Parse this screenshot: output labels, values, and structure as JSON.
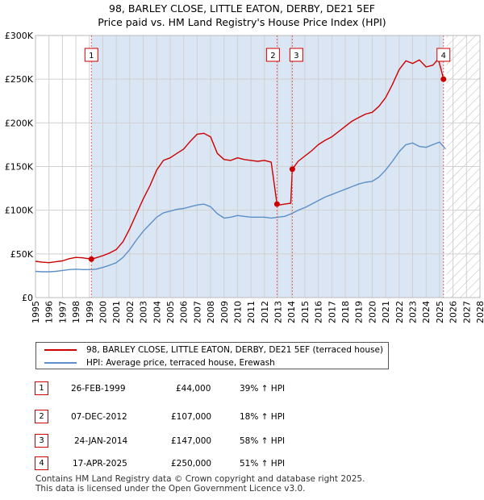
{
  "title_line1": "98, BARLEY CLOSE, LITTLE EATON, DERBY, DE21 5EF",
  "title_line2": "Price paid vs. HM Land Registry's House Price Index (HPI)",
  "colors": {
    "price": "#cc0000",
    "hpi": "#5b8fc9",
    "shade": "#dbe6f4",
    "grid": "#d0d0d0",
    "marker_line": "#e06060"
  },
  "chart_data": {
    "type": "line",
    "title": "Price paid vs. HM Land Registry's House Price Index (HPI)",
    "xlim": [
      1995,
      2028
    ],
    "ylim": [
      0,
      300000
    ],
    "xticks": [
      "1995",
      "1996",
      "1997",
      "1998",
      "1999",
      "2000",
      "2001",
      "2002",
      "2003",
      "2004",
      "2005",
      "2006",
      "2007",
      "2008",
      "2009",
      "2010",
      "2011",
      "2012",
      "2013",
      "2014",
      "2015",
      "2016",
      "2017",
      "2018",
      "2019",
      "2020",
      "2021",
      "2022",
      "2023",
      "2024",
      "2025",
      "2026",
      "2027",
      "2028"
    ],
    "yticks": [
      {
        "value": 0,
        "label": "£0"
      },
      {
        "value": 50000,
        "label": "£50K"
      },
      {
        "value": 100000,
        "label": "£100K"
      },
      {
        "value": 150000,
        "label": "£150K"
      },
      {
        "value": 200000,
        "label": "£200K"
      },
      {
        "value": 250000,
        "label": "£250K"
      },
      {
        "value": 300000,
        "label": "£300K"
      }
    ],
    "shade_ranges": [
      [
        1999.15,
        2025.29
      ]
    ],
    "hatch_from": 2025.5,
    "series": [
      {
        "name": "98, BARLEY CLOSE, LITTLE EATON, DERBY, DE21 5EF (terraced house)",
        "x": [
          1995.0,
          1995.5,
          1996.0,
          1996.5,
          1997.0,
          1997.5,
          1998.0,
          1998.5,
          1999.15,
          1999.5,
          2000.0,
          2000.5,
          2001.0,
          2001.5,
          2002.0,
          2002.5,
          2003.0,
          2003.5,
          2004.0,
          2004.5,
          2005.0,
          2005.5,
          2006.0,
          2006.5,
          2007.0,
          2007.5,
          2008.0,
          2008.5,
          2009.0,
          2009.5,
          2010.0,
          2010.5,
          2011.0,
          2011.5,
          2012.0,
          2012.5,
          2012.93,
          2013.1,
          2013.5,
          2013.95,
          2014.07,
          2014.5,
          2015.0,
          2015.5,
          2016.0,
          2016.5,
          2017.0,
          2017.5,
          2018.0,
          2018.5,
          2019.0,
          2019.5,
          2020.0,
          2020.5,
          2021.0,
          2021.5,
          2022.0,
          2022.5,
          2023.0,
          2023.5,
          2024.0,
          2024.5,
          2024.9,
          2025.1,
          2025.29,
          2025.45
        ],
        "y": [
          41500,
          40500,
          40000,
          41000,
          42000,
          44500,
          46000,
          45500,
          44000,
          45500,
          48000,
          51000,
          55000,
          64000,
          79000,
          96000,
          113000,
          128000,
          146000,
          157000,
          160000,
          165000,
          170000,
          179000,
          187000,
          188000,
          184000,
          165000,
          158000,
          157000,
          160000,
          158000,
          157000,
          156000,
          157000,
          155000,
          107000,
          106000,
          107000,
          108000,
          147000,
          156000,
          162000,
          168000,
          175000,
          180000,
          184000,
          190000,
          196000,
          202000,
          206000,
          210000,
          212000,
          219000,
          229000,
          244000,
          261000,
          271000,
          268000,
          272000,
          264000,
          266000,
          273000,
          262000,
          250000,
          248000
        ],
        "color": "#cc0000"
      },
      {
        "name": "HPI: Average price, terraced house, Erewash",
        "x": [
          1995.0,
          1995.5,
          1996.0,
          1996.5,
          1997.0,
          1997.5,
          1998.0,
          1998.5,
          1999.0,
          1999.5,
          2000.0,
          2000.5,
          2001.0,
          2001.5,
          2002.0,
          2002.5,
          2003.0,
          2003.5,
          2004.0,
          2004.5,
          2005.0,
          2005.5,
          2006.0,
          2006.5,
          2007.0,
          2007.5,
          2008.0,
          2008.5,
          2009.0,
          2009.5,
          2010.0,
          2010.5,
          2011.0,
          2011.5,
          2012.0,
          2012.5,
          2013.0,
          2013.5,
          2014.0,
          2014.5,
          2015.0,
          2015.5,
          2016.0,
          2016.5,
          2017.0,
          2017.5,
          2018.0,
          2018.5,
          2019.0,
          2019.5,
          2020.0,
          2020.5,
          2021.0,
          2021.5,
          2022.0,
          2022.5,
          2023.0,
          2023.5,
          2024.0,
          2024.5,
          2025.0,
          2025.45
        ],
        "y": [
          30000,
          29500,
          29500,
          30000,
          31000,
          32000,
          32500,
          32000,
          32000,
          32500,
          34500,
          37000,
          40000,
          46000,
          55000,
          66000,
          76000,
          84000,
          92000,
          97000,
          99000,
          101000,
          102000,
          104000,
          106000,
          107000,
          104000,
          96000,
          91000,
          92000,
          94000,
          93000,
          92000,
          92000,
          92000,
          91000,
          92000,
          93000,
          96000,
          100000,
          103000,
          107000,
          111000,
          115000,
          118000,
          121000,
          124000,
          127000,
          130000,
          132000,
          133000,
          138000,
          146000,
          156000,
          167000,
          175000,
          177000,
          173000,
          172000,
          175000,
          178000,
          170000
        ],
        "color": "#5b8fc9"
      }
    ],
    "sale_points": [
      {
        "label": "1",
        "x": 1999.15,
        "y": 44000
      },
      {
        "label": "2",
        "x": 2012.93,
        "y": 107000
      },
      {
        "label": "3",
        "x": 2014.07,
        "y": 147000
      },
      {
        "label": "4",
        "x": 2025.29,
        "y": 250000
      }
    ]
  },
  "legend": {
    "price_label": "98, BARLEY CLOSE, LITTLE EATON, DERBY, DE21 5EF (terraced house)",
    "hpi_label": "HPI: Average price, terraced house, Erewash"
  },
  "sales": [
    {
      "num": "1",
      "date": "26-FEB-1999",
      "price": "£44,000",
      "hpi": "39% ↑ HPI"
    },
    {
      "num": "2",
      "date": "07-DEC-2012",
      "price": "£107,000",
      "hpi": "18% ↑ HPI"
    },
    {
      "num": "3",
      "date": "24-JAN-2014",
      "price": "£147,000",
      "hpi": "58% ↑ HPI"
    },
    {
      "num": "4",
      "date": "17-APR-2025",
      "price": "£250,000",
      "hpi": "51% ↑ HPI"
    }
  ],
  "footer_line1": "Contains HM Land Registry data © Crown copyright and database right 2025.",
  "footer_line2": "This data is licensed under the Open Government Licence v3.0."
}
